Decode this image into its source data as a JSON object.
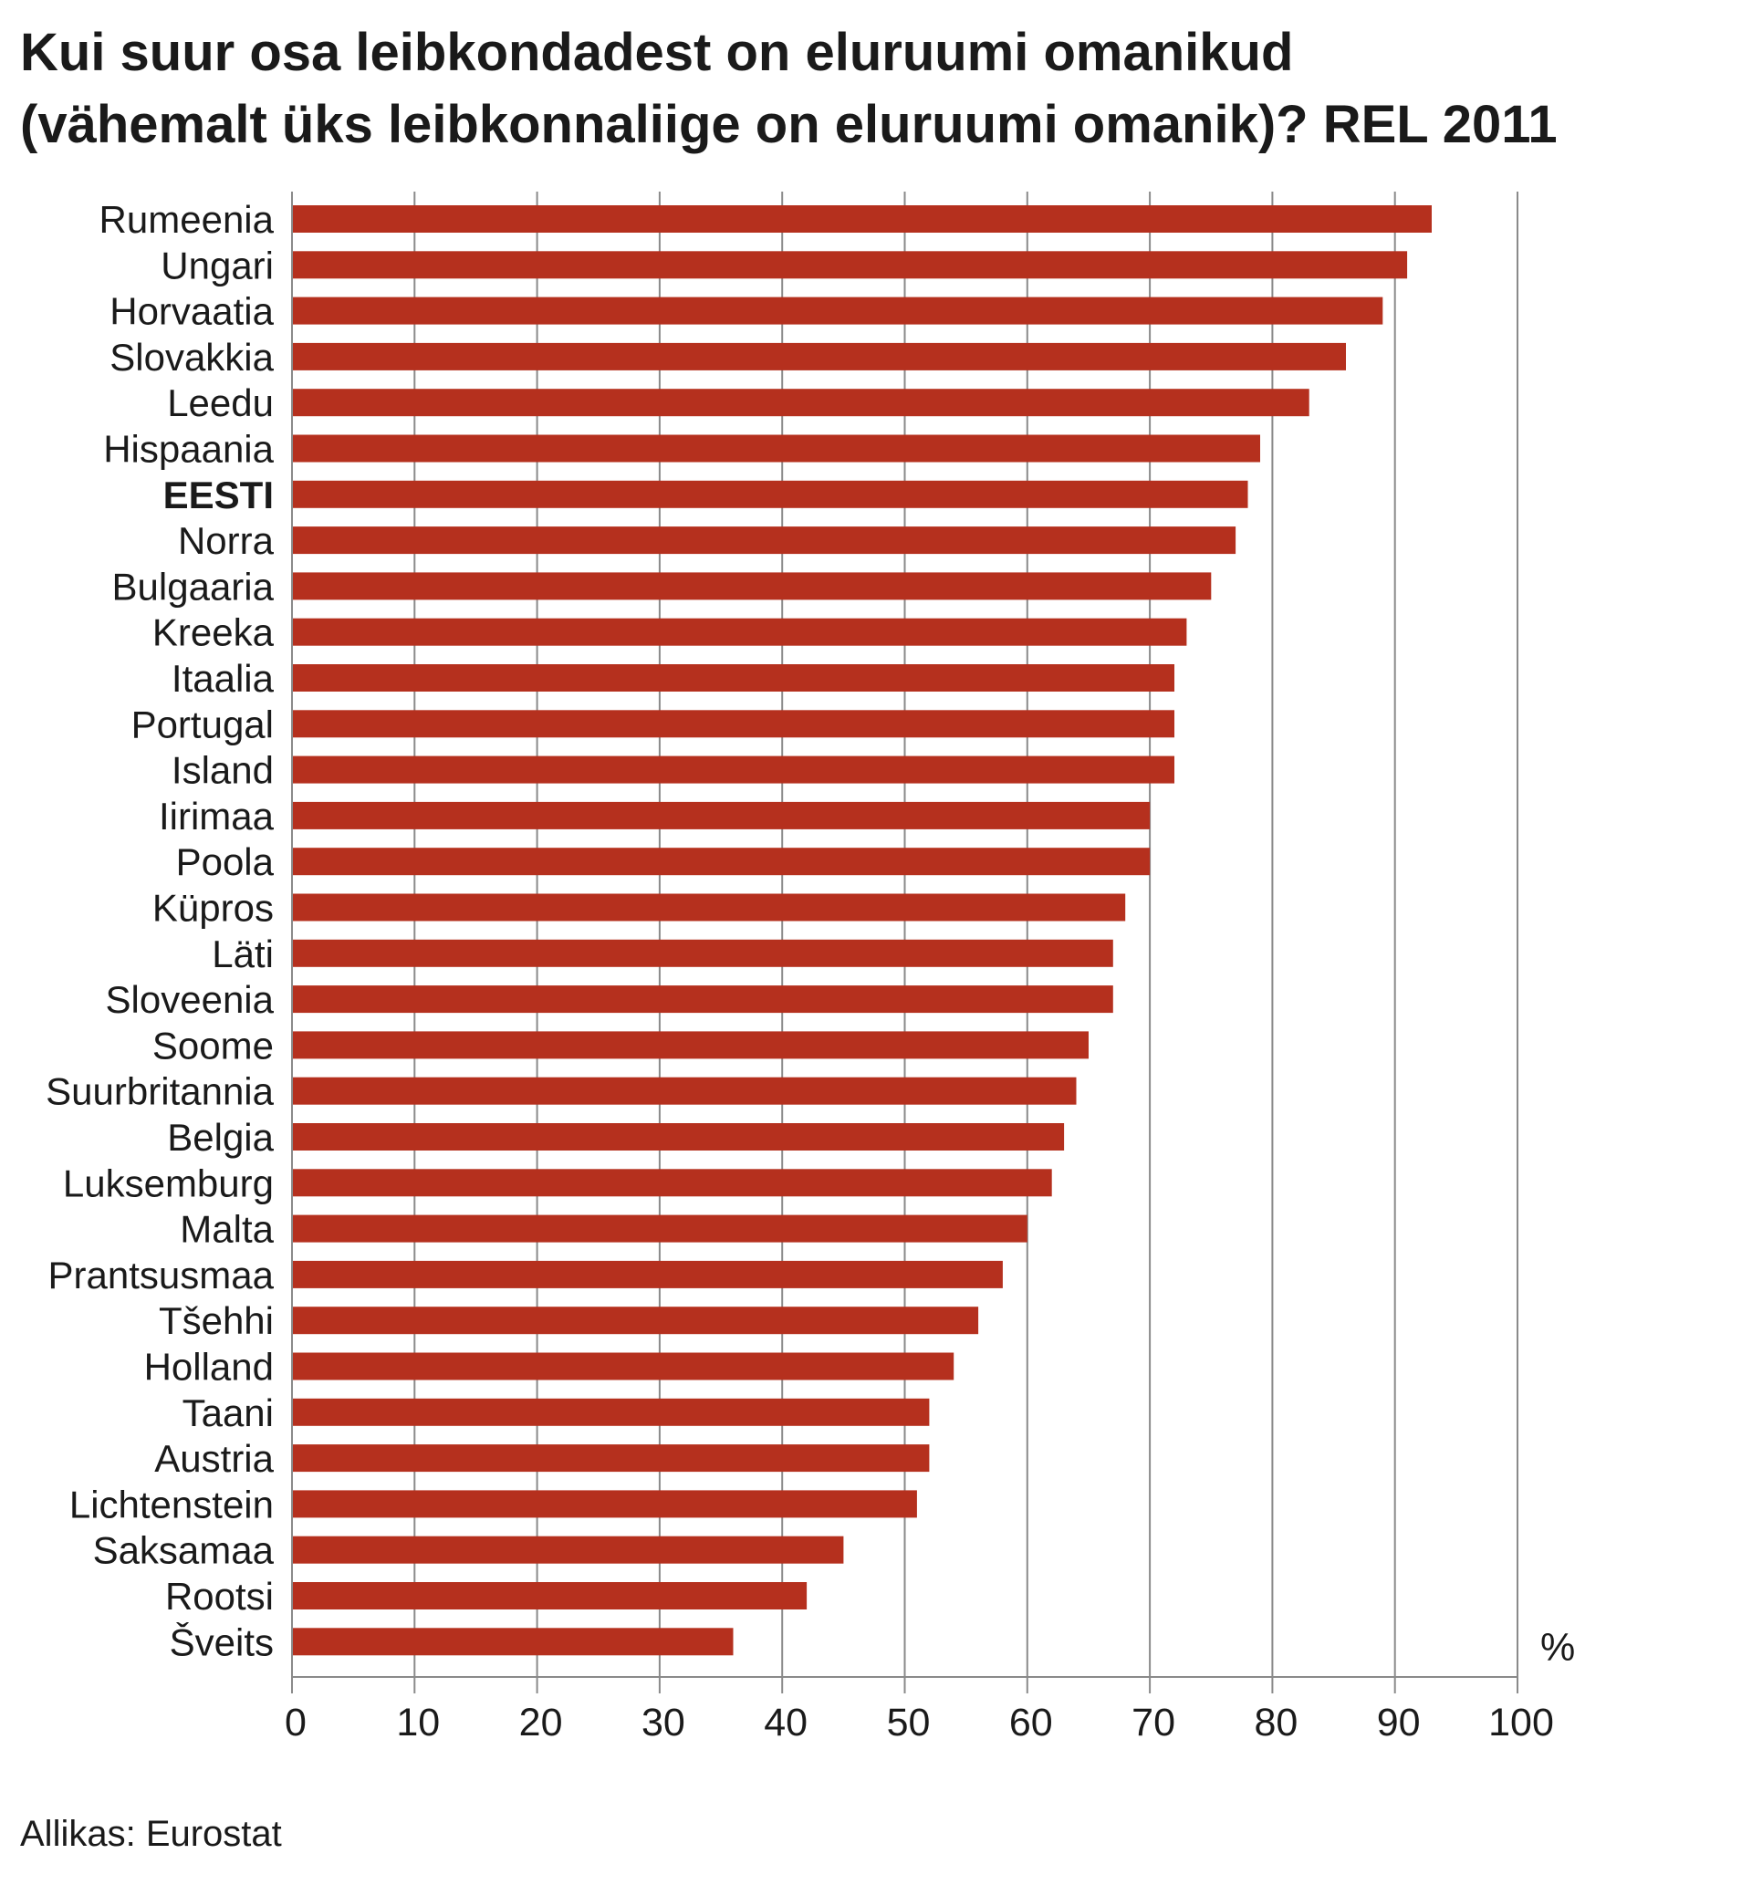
{
  "chart_data": {
    "type": "bar",
    "orientation": "horizontal",
    "title_lines": [
      "Kui suur osa leibkondadest on eluruumi omanikud",
      "(vähemalt üks leibkonnaliige on eluruumi omanik)? REL 2011"
    ],
    "unit_label": "%",
    "categories": [
      "Rumeenia",
      "Ungari",
      "Horvaatia",
      "Slovakkia",
      "Leedu",
      "Hispaania",
      "EESTI",
      "Norra",
      "Bulgaaria",
      "Kreeka",
      "Itaalia",
      "Portugal",
      "Island",
      "Iirimaa",
      "Poola",
      "Küpros",
      "Läti",
      "Sloveenia",
      "Soome",
      "Suurbritannia",
      "Belgia",
      "Luksemburg",
      "Malta",
      "Prantsusmaa",
      "Tšehhi",
      "Holland",
      "Taani",
      "Austria",
      "Lichtenstein",
      "Saksamaa",
      "Rootsi",
      "Šveits"
    ],
    "highlighted_category": "EESTI",
    "values": [
      93,
      91,
      89,
      86,
      83,
      79,
      78,
      77,
      75,
      73,
      72,
      72,
      72,
      70,
      70,
      68,
      67,
      67,
      65,
      64,
      63,
      62,
      60,
      58,
      56,
      54,
      52,
      52,
      51,
      45,
      42,
      36
    ],
    "xlim": [
      0,
      100
    ],
    "xticks": [
      0,
      10,
      20,
      30,
      40,
      50,
      60,
      70,
      80,
      90,
      100
    ],
    "grid": true,
    "bar_color": "#b5301e",
    "source": "Allikas: Eurostat"
  }
}
